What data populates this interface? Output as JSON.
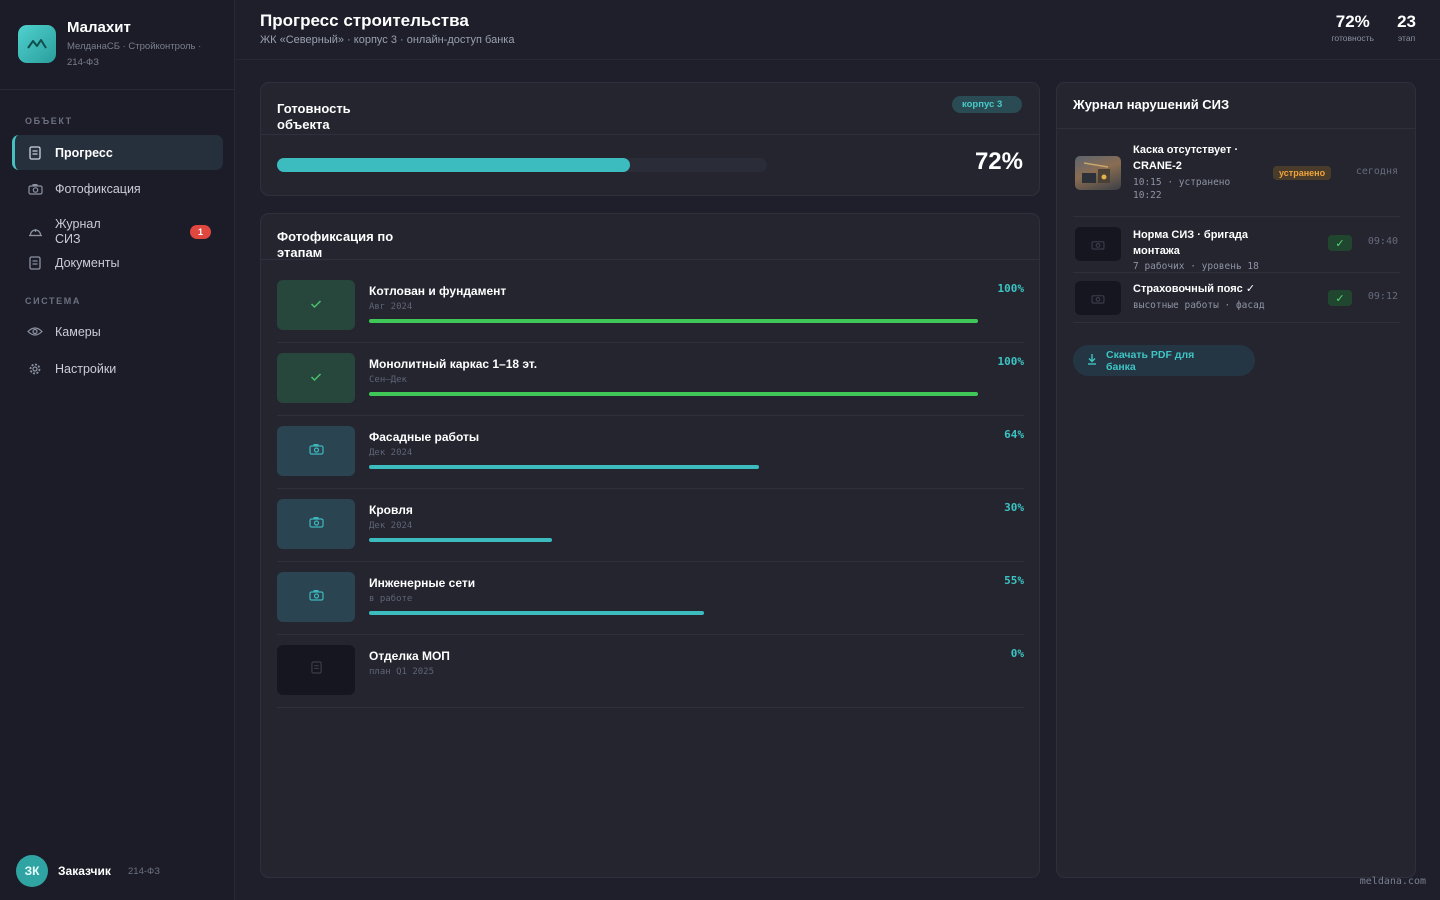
{
  "brand": {
    "name": "Малахит",
    "subtitle": "МелданаСБ · Стройконтроль · 214-ФЗ"
  },
  "sidebar": {
    "section_object": "ОБЪЕКТ",
    "section_system": "СИСТЕМА",
    "items": [
      {
        "label": "Прогресс",
        "icon": "document-icon",
        "active": true
      },
      {
        "label": "Фотофиксация",
        "icon": "camera-icon"
      },
      {
        "label": "Журнал СИЗ",
        "icon": "helmet-icon",
        "badge": "1"
      },
      {
        "label": "Документы",
        "icon": "document-icon"
      },
      {
        "label": "Камеры",
        "icon": "eye-icon"
      },
      {
        "label": "Настройки",
        "icon": "gear-icon"
      }
    ]
  },
  "user": {
    "initials": "ЗК",
    "name": "Заказчик",
    "role": "214-ФЗ"
  },
  "header": {
    "title": "Прогресс строительства",
    "subtitle": "ЖК «Северный» · корпус 3 · онлайн-доступ банка",
    "stats": [
      {
        "value": "72%",
        "label": "готовность"
      },
      {
        "value": "23",
        "label": "этап"
      }
    ]
  },
  "readiness": {
    "title": "Готовность объекта",
    "chip": "корпус 3",
    "percent_label": "72%",
    "progress": 0.72
  },
  "stages": {
    "title": "Фотофиксация по этапам",
    "items": [
      {
        "name": "Котлован и фундамент",
        "meta": "Авг 2024",
        "pct_label": "100%",
        "progress": 1.0,
        "status": "done",
        "icon": "check-icon"
      },
      {
        "name": "Монолитный каркас 1–18 эт.",
        "meta": "Сен–Дек",
        "pct_label": "100%",
        "progress": 1.0,
        "status": "done",
        "icon": "check-icon"
      },
      {
        "name": "Фасадные работы",
        "meta": "Дек 2024",
        "pct_label": "64%",
        "progress": 0.64,
        "status": "wip",
        "icon": "camera-icon"
      },
      {
        "name": "Кровля",
        "meta": "Дек 2024",
        "pct_label": "30%",
        "progress": 0.3,
        "status": "wip",
        "icon": "camera-icon"
      },
      {
        "name": "Инженерные сети",
        "meta": "в работе",
        "pct_label": "55%",
        "progress": 0.55,
        "status": "wip",
        "icon": "camera-icon"
      },
      {
        "name": "Отделка МОП",
        "meta": "план Q1 2025",
        "pct_label": "0%",
        "progress": 0.0,
        "status": "plan",
        "icon": "document-icon"
      }
    ]
  },
  "violations": {
    "title": "Журнал нарушений СИЗ",
    "items": [
      {
        "title": "Каска отсутствует · CRANE-2",
        "meta": "10:15 · устранено 10:22",
        "tag": "устранено",
        "time": "сегодня",
        "thumb": "photo"
      },
      {
        "title": "Норма СИЗ · бригада монтажа",
        "meta": "7 рабочих · уровень 18",
        "badge": "✓",
        "time": "09:40",
        "thumb": "camera-icon"
      },
      {
        "title": "Страховочный пояс ✓",
        "meta": "высотные работы · фасад",
        "badge": "✓",
        "time": "09:12",
        "thumb": "camera-icon"
      }
    ],
    "pdf_button": "Скачать PDF для банка"
  },
  "footer": {
    "mark": "meldana.com"
  },
  "colors": {
    "accent": "#3cbcbe",
    "done_bar": "#3fc857",
    "alert": "#e0473f",
    "warning": "#f0a53c"
  }
}
